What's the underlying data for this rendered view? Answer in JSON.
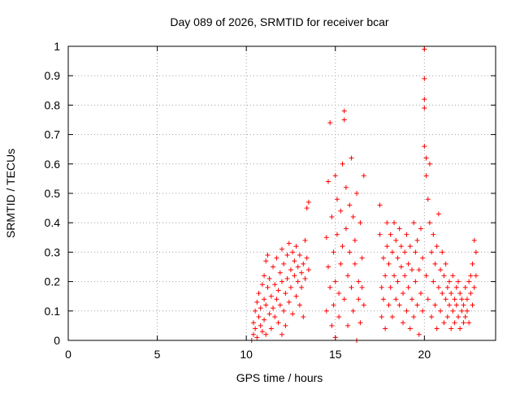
{
  "chart_data": {
    "type": "scatter",
    "title": "Day 089 of 2026, SRMTID for receiver bcar",
    "xlabel": "GPS time / hours",
    "ylabel": "SRMTID / TECUs",
    "xlim": [
      0,
      24
    ],
    "ylim": [
      0,
      1
    ],
    "xticks": [
      0,
      5,
      10,
      15,
      20
    ],
    "yticks": [
      0,
      0.1,
      0.2,
      0.3,
      0.4,
      0.5,
      0.6,
      0.7,
      0.8,
      0.9,
      1
    ],
    "xtick_labels": [
      "0",
      "5",
      "10",
      "15",
      "20"
    ],
    "ytick_labels": [
      "0",
      "0.1",
      "0.2",
      "0.3",
      "0.4",
      "0.5",
      "0.6",
      "0.7",
      "0.8",
      "0.9",
      "1"
    ],
    "grid": true,
    "marker": "+",
    "series": [
      {
        "name": "bcar",
        "color": "#ff0000",
        "points": [
          [
            10.3,
            0.0
          ],
          [
            10.4,
            0.02
          ],
          [
            10.4,
            0.06
          ],
          [
            10.5,
            0.1
          ],
          [
            10.5,
            0.04
          ],
          [
            10.6,
            0.13
          ],
          [
            10.6,
            0.01
          ],
          [
            10.7,
            0.08
          ],
          [
            10.7,
            0.16
          ],
          [
            10.8,
            0.05
          ],
          [
            10.8,
            0.11
          ],
          [
            10.9,
            0.19
          ],
          [
            10.9,
            0.03
          ],
          [
            11.0,
            0.14
          ],
          [
            11.0,
            0.22
          ],
          [
            11.0,
            0.07
          ],
          [
            11.1,
            0.27
          ],
          [
            11.1,
            0.12
          ],
          [
            11.1,
            0.02
          ],
          [
            11.2,
            0.18
          ],
          [
            11.2,
            0.29
          ],
          [
            11.3,
            0.09
          ],
          [
            11.3,
            0.21
          ],
          [
            11.4,
            0.15
          ],
          [
            11.4,
            0.04
          ],
          [
            11.5,
            0.25
          ],
          [
            11.5,
            0.11
          ],
          [
            11.6,
            0.19
          ],
          [
            11.6,
            0.08
          ],
          [
            11.7,
            0.14
          ],
          [
            11.7,
            0.28
          ],
          [
            11.8,
            0.06
          ],
          [
            11.8,
            0.17
          ],
          [
            11.9,
            0.23
          ],
          [
            11.9,
            0.12
          ],
          [
            12.0,
            0.02
          ],
          [
            12.0,
            0.2
          ],
          [
            12.0,
            0.31
          ],
          [
            12.1,
            0.1
          ],
          [
            12.1,
            0.26
          ],
          [
            12.2,
            0.16
          ],
          [
            12.2,
            0.05
          ],
          [
            12.3,
            0.29
          ],
          [
            12.3,
            0.21
          ],
          [
            12.4,
            0.13
          ],
          [
            12.4,
            0.33
          ],
          [
            12.5,
            0.24
          ],
          [
            12.5,
            0.18
          ],
          [
            12.6,
            0.3
          ],
          [
            12.6,
            0.09
          ],
          [
            12.7,
            0.22
          ],
          [
            12.7,
            0.27
          ],
          [
            12.8,
            0.15
          ],
          [
            12.8,
            0.32
          ],
          [
            12.9,
            0.2
          ],
          [
            12.9,
            0.25
          ],
          [
            13.0,
            0.12
          ],
          [
            13.0,
            0.29
          ],
          [
            13.1,
            0.23
          ],
          [
            13.1,
            0.18
          ],
          [
            13.2,
            0.26
          ],
          [
            13.2,
            0.08
          ],
          [
            13.3,
            0.21
          ],
          [
            13.3,
            0.34
          ],
          [
            13.4,
            0.45
          ],
          [
            13.4,
            0.28
          ],
          [
            13.5,
            0.47
          ],
          [
            13.5,
            0.24
          ],
          [
            14.5,
            0.35
          ],
          [
            14.5,
            0.1
          ],
          [
            14.6,
            0.25
          ],
          [
            14.6,
            0.54
          ],
          [
            14.7,
            0.74
          ],
          [
            14.7,
            0.18
          ],
          [
            14.8,
            0.05
          ],
          [
            14.8,
            0.42
          ],
          [
            14.9,
            0.3
          ],
          [
            14.9,
            0.12
          ],
          [
            15.0,
            0.56
          ],
          [
            15.0,
            0.2
          ],
          [
            15.0,
            0.01
          ],
          [
            15.1,
            0.48
          ],
          [
            15.1,
            0.36
          ],
          [
            15.2,
            0.16
          ],
          [
            15.2,
            0.08
          ],
          [
            15.3,
            0.26
          ],
          [
            15.3,
            0.44
          ],
          [
            15.4,
            0.32
          ],
          [
            15.4,
            0.6
          ],
          [
            15.5,
            0.78
          ],
          [
            15.5,
            0.75
          ],
          [
            15.5,
            0.14
          ],
          [
            15.6,
            0.52
          ],
          [
            15.6,
            0.38
          ],
          [
            15.7,
            0.22
          ],
          [
            15.7,
            0.05
          ],
          [
            15.8,
            0.46
          ],
          [
            15.8,
            0.3
          ],
          [
            15.9,
            0.18
          ],
          [
            15.9,
            0.62
          ],
          [
            16.0,
            0.42
          ],
          [
            16.0,
            0.1
          ],
          [
            16.1,
            0.34
          ],
          [
            16.1,
            0.26
          ],
          [
            16.2,
            0.0
          ],
          [
            16.2,
            0.5
          ],
          [
            16.3,
            0.2
          ],
          [
            16.3,
            0.14
          ],
          [
            16.4,
            0.4
          ],
          [
            16.4,
            0.06
          ],
          [
            16.5,
            0.28
          ],
          [
            16.5,
            0.18
          ],
          [
            16.6,
            0.56
          ],
          [
            16.6,
            0.12
          ],
          [
            17.5,
            0.46
          ],
          [
            17.5,
            0.36
          ],
          [
            17.6,
            0.18
          ],
          [
            17.6,
            0.08
          ],
          [
            17.7,
            0.28
          ],
          [
            17.7,
            0.14
          ],
          [
            17.8,
            0.04
          ],
          [
            17.8,
            0.22
          ],
          [
            17.9,
            0.4
          ],
          [
            17.9,
            0.32
          ],
          [
            18.0,
            0.12
          ],
          [
            18.0,
            0.26
          ],
          [
            18.1,
            0.18
          ],
          [
            18.1,
            0.36
          ],
          [
            18.2,
            0.08
          ],
          [
            18.2,
            0.3
          ],
          [
            18.3,
            0.22
          ],
          [
            18.3,
            0.4
          ],
          [
            18.4,
            0.14
          ],
          [
            18.4,
            0.34
          ],
          [
            18.5,
            0.2
          ],
          [
            18.5,
            0.28
          ],
          [
            18.6,
            0.38
          ],
          [
            18.6,
            0.12
          ],
          [
            18.7,
            0.25
          ],
          [
            18.7,
            0.32
          ],
          [
            18.8,
            0.16
          ],
          [
            18.8,
            0.06
          ],
          [
            18.9,
            0.3
          ],
          [
            18.9,
            0.22
          ],
          [
            19.0,
            0.36
          ],
          [
            19.0,
            0.1
          ],
          [
            19.1,
            0.26
          ],
          [
            19.1,
            0.18
          ],
          [
            19.2,
            0.32
          ],
          [
            19.2,
            0.04
          ],
          [
            19.3,
            0.14
          ],
          [
            19.3,
            0.24
          ],
          [
            19.4,
            0.4
          ],
          [
            19.4,
            0.08
          ],
          [
            19.5,
            0.2
          ],
          [
            19.5,
            0.3
          ],
          [
            19.6,
            0.12
          ],
          [
            19.6,
            0.34
          ],
          [
            19.7,
            0.02
          ],
          [
            19.7,
            0.24
          ],
          [
            19.8,
            0.16
          ],
          [
            19.8,
            0.38
          ],
          [
            19.9,
            0.28
          ],
          [
            19.9,
            0.1
          ],
          [
            20.0,
            0.99
          ],
          [
            20.0,
            0.89
          ],
          [
            20.0,
            0.82
          ],
          [
            20.0,
            0.79
          ],
          [
            20.0,
            0.66
          ],
          [
            20.1,
            0.62
          ],
          [
            20.1,
            0.56
          ],
          [
            20.1,
            0.22
          ],
          [
            20.2,
            0.48
          ],
          [
            20.2,
            0.14
          ],
          [
            20.3,
            0.6
          ],
          [
            20.3,
            0.4
          ],
          [
            20.4,
            0.3
          ],
          [
            20.4,
            0.08
          ],
          [
            20.5,
            0.36
          ],
          [
            20.5,
            0.2
          ],
          [
            20.6,
            0.26
          ],
          [
            20.6,
            0.12
          ],
          [
            20.7,
            0.32
          ],
          [
            20.7,
            0.04
          ],
          [
            20.8,
            0.18
          ],
          [
            20.8,
            0.43
          ],
          [
            20.9,
            0.24
          ],
          [
            20.9,
            0.1
          ],
          [
            21.0,
            0.3
          ],
          [
            21.0,
            0.16
          ],
          [
            21.1,
            0.22
          ],
          [
            21.1,
            0.06
          ],
          [
            21.2,
            0.14
          ],
          [
            21.2,
            0.26
          ],
          [
            21.3,
            0.18
          ],
          [
            21.3,
            0.08
          ],
          [
            21.4,
            0.2
          ],
          [
            21.4,
            0.12
          ],
          [
            21.5,
            0.16
          ],
          [
            21.5,
            0.04
          ],
          [
            21.6,
            0.1
          ],
          [
            21.6,
            0.22
          ],
          [
            21.7,
            0.14
          ],
          [
            21.7,
            0.06
          ],
          [
            21.8,
            0.12
          ],
          [
            21.8,
            0.18
          ],
          [
            21.9,
            0.08
          ],
          [
            21.9,
            0.2
          ],
          [
            22.0,
            0.16
          ],
          [
            22.0,
            0.04
          ],
          [
            22.1,
            0.1
          ],
          [
            22.1,
            0.14
          ],
          [
            22.2,
            0.06
          ],
          [
            22.2,
            0.12
          ],
          [
            22.3,
            0.18
          ],
          [
            22.3,
            0.08
          ],
          [
            22.4,
            0.14
          ],
          [
            22.4,
            0.1
          ],
          [
            22.5,
            0.2
          ],
          [
            22.5,
            0.06
          ],
          [
            22.6,
            0.16
          ],
          [
            22.6,
            0.22
          ],
          [
            22.7,
            0.12
          ],
          [
            22.7,
            0.26
          ],
          [
            22.8,
            0.18
          ],
          [
            22.8,
            0.34
          ],
          [
            22.9,
            0.3
          ],
          [
            22.9,
            0.22
          ]
        ]
      }
    ]
  }
}
